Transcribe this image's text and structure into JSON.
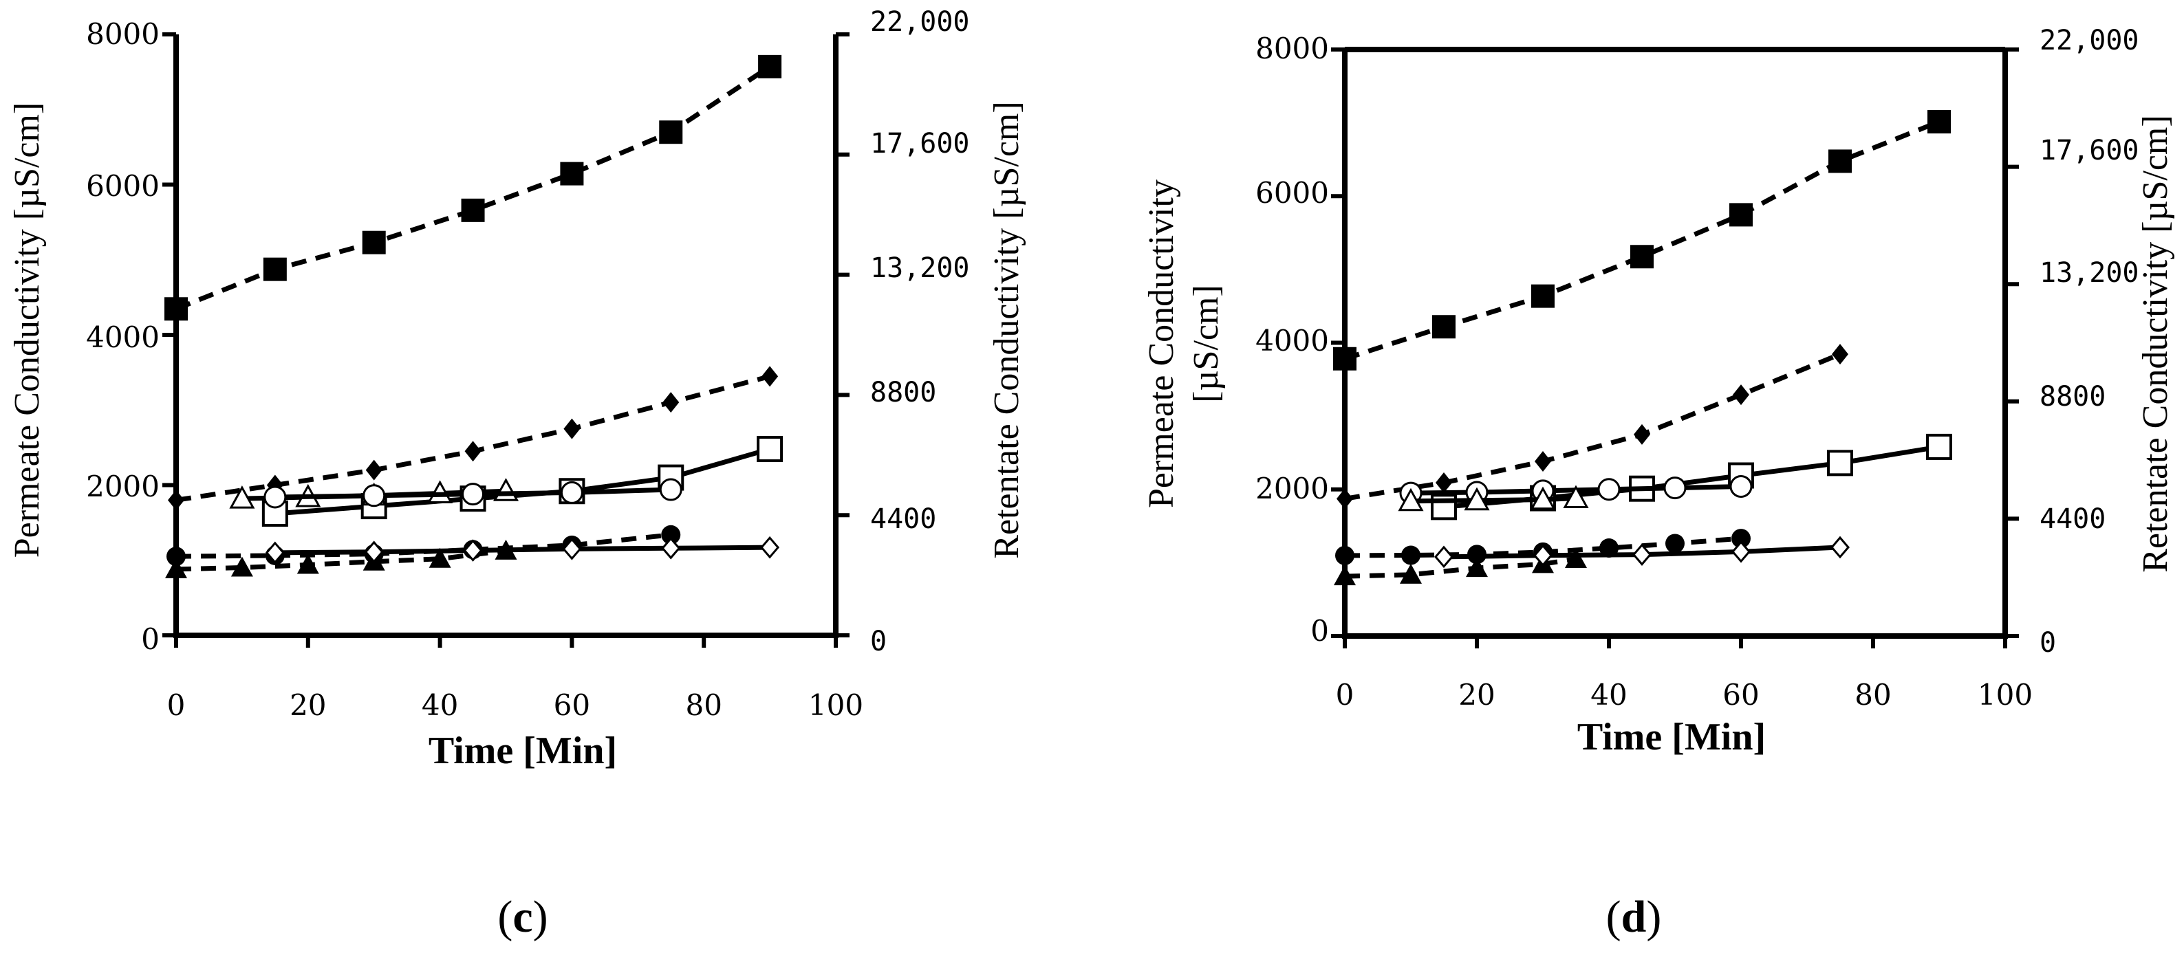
{
  "chart_data": [
    {
      "type": "line",
      "caption": {
        "open": "(",
        "letter": "c",
        "close": ")"
      },
      "xlabel": "Time [Min]",
      "ylabel_left": "Permeate Conductivity [µS/cm]",
      "ylabel_right": "Retentate Conductivity [µS/cm]",
      "xlim": [
        0,
        100
      ],
      "ylim_left": [
        0,
        8000
      ],
      "ylim_right": [
        0,
        22000
      ],
      "x_ticks": [
        "0",
        "20",
        "40",
        "60",
        "80",
        "100"
      ],
      "y_left_ticks": [
        "0",
        "2000",
        "4000",
        "6000",
        "8000"
      ],
      "y_right_ticks": [
        "0",
        "4400",
        "8800",
        "13,200",
        "17,600",
        "22,000"
      ],
      "series": [
        {
          "name": "retentate-squares",
          "marker": "square-filled",
          "line": "dashed",
          "axis": "right",
          "x": [
            0,
            15,
            30,
            45,
            60,
            75,
            90
          ],
          "y": [
            11950,
            13400,
            14380,
            15560,
            16900,
            18420,
            20820
          ]
        },
        {
          "name": "retentate-diamonds",
          "marker": "diamond-filled",
          "line": "dashed",
          "axis": "right",
          "x": [
            0,
            15,
            30,
            45,
            60,
            75,
            90
          ],
          "y": [
            4950,
            5500,
            6050,
            6740,
            7560,
            8530,
            9480
          ]
        },
        {
          "name": "permeate-open-squares",
          "marker": "square-open",
          "line": "solid",
          "axis": "left",
          "x": [
            15,
            30,
            45,
            60,
            75,
            90
          ],
          "y": [
            1620,
            1720,
            1820,
            1920,
            2100,
            2480
          ]
        },
        {
          "name": "permeate-open-triangles",
          "marker": "triangle-open",
          "line": "solid",
          "axis": "left",
          "x": [
            10,
            20,
            30,
            40,
            50
          ],
          "y": [
            1820,
            1840,
            1860,
            1890,
            1920
          ]
        },
        {
          "name": "permeate-open-circles",
          "marker": "circle-open",
          "line": "solid",
          "axis": "left",
          "x": [
            15,
            30,
            45,
            60,
            75
          ],
          "y": [
            1840,
            1860,
            1880,
            1900,
            1940
          ]
        },
        {
          "name": "retentate-circles",
          "marker": "circle-filled",
          "line": "dashed",
          "axis": "right",
          "x": [
            0,
            15,
            30,
            45,
            60,
            75
          ],
          "y": [
            2890,
            2920,
            2980,
            3140,
            3300,
            3680
          ]
        },
        {
          "name": "retentate-triangles",
          "marker": "triangle-filled",
          "line": "dashed",
          "axis": "right",
          "x": [
            0,
            10,
            20,
            30,
            40,
            50
          ],
          "y": [
            2420,
            2480,
            2580,
            2700,
            2800,
            3100
          ]
        },
        {
          "name": "permeate-open-diamonds",
          "marker": "diamond-open",
          "line": "solid",
          "axis": "left",
          "x": [
            15,
            30,
            45,
            60,
            75,
            90
          ],
          "y": [
            1100,
            1110,
            1130,
            1150,
            1160,
            1170
          ]
        }
      ]
    },
    {
      "type": "line",
      "caption": {
        "open": "(",
        "letter": "d",
        "close": ")"
      },
      "xlabel": "Time [Min]",
      "ylabel_left_line1": "Permeate Conductivity",
      "ylabel_left_line2": "[µS/cm]",
      "ylabel_right": "Retentate Conductivity [µS/cm]",
      "xlim": [
        0,
        100
      ],
      "ylim_left": [
        0,
        8000
      ],
      "ylim_right": [
        0,
        22000
      ],
      "x_ticks": [
        "0",
        "20",
        "40",
        "60",
        "80",
        "100"
      ],
      "y_left_ticks": [
        "0",
        "2000",
        "4000",
        "6000",
        "8000"
      ],
      "y_right_ticks": [
        "0",
        "4400",
        "8800",
        "13,200",
        "17,600",
        "22,000"
      ],
      "series": [
        {
          "name": "retentate-squares",
          "marker": "square-filled",
          "line": "dashed",
          "axis": "right",
          "x": [
            0,
            15,
            30,
            45,
            60,
            75,
            90
          ],
          "y": [
            10400,
            11600,
            12750,
            14230,
            15800,
            17810,
            19290
          ]
        },
        {
          "name": "retentate-diamonds",
          "marker": "diamond-filled",
          "line": "dashed",
          "axis": "right",
          "x": [
            0,
            15,
            30,
            45,
            60,
            75
          ],
          "y": [
            5150,
            5750,
            6550,
            7560,
            9050,
            10570
          ]
        },
        {
          "name": "permeate-open-squares",
          "marker": "square-open",
          "line": "solid",
          "axis": "left",
          "x": [
            15,
            30,
            45,
            60,
            75,
            90
          ],
          "y": [
            1760,
            1880,
            2010,
            2190,
            2360,
            2580
          ]
        },
        {
          "name": "permeate-open-circles",
          "marker": "circle-open",
          "line": "solid",
          "axis": "left",
          "x": [
            10,
            20,
            30,
            40,
            50,
            60
          ],
          "y": [
            1950,
            1960,
            1980,
            2000,
            2020,
            2040
          ]
        },
        {
          "name": "permeate-open-triangles",
          "marker": "triangle-open",
          "line": "solid",
          "axis": "left",
          "x": [
            10,
            20,
            30,
            35
          ],
          "y": [
            1840,
            1850,
            1860,
            1880
          ]
        },
        {
          "name": "retentate-circles",
          "marker": "circle-filled",
          "line": "dashed",
          "axis": "right",
          "x": [
            0,
            10,
            20,
            30,
            40,
            50,
            60
          ],
          "y": [
            3020,
            3030,
            3060,
            3150,
            3300,
            3470,
            3660
          ]
        },
        {
          "name": "retentate-triangles",
          "marker": "triangle-filled",
          "line": "dashed",
          "axis": "right",
          "x": [
            0,
            10,
            20,
            30,
            35
          ],
          "y": [
            2240,
            2300,
            2550,
            2700,
            2890
          ]
        },
        {
          "name": "permeate-open-diamonds",
          "marker": "diamond-open",
          "line": "solid",
          "axis": "left",
          "x": [
            15,
            30,
            45,
            60,
            75
          ],
          "y": [
            1080,
            1100,
            1110,
            1150,
            1210
          ]
        }
      ]
    }
  ]
}
